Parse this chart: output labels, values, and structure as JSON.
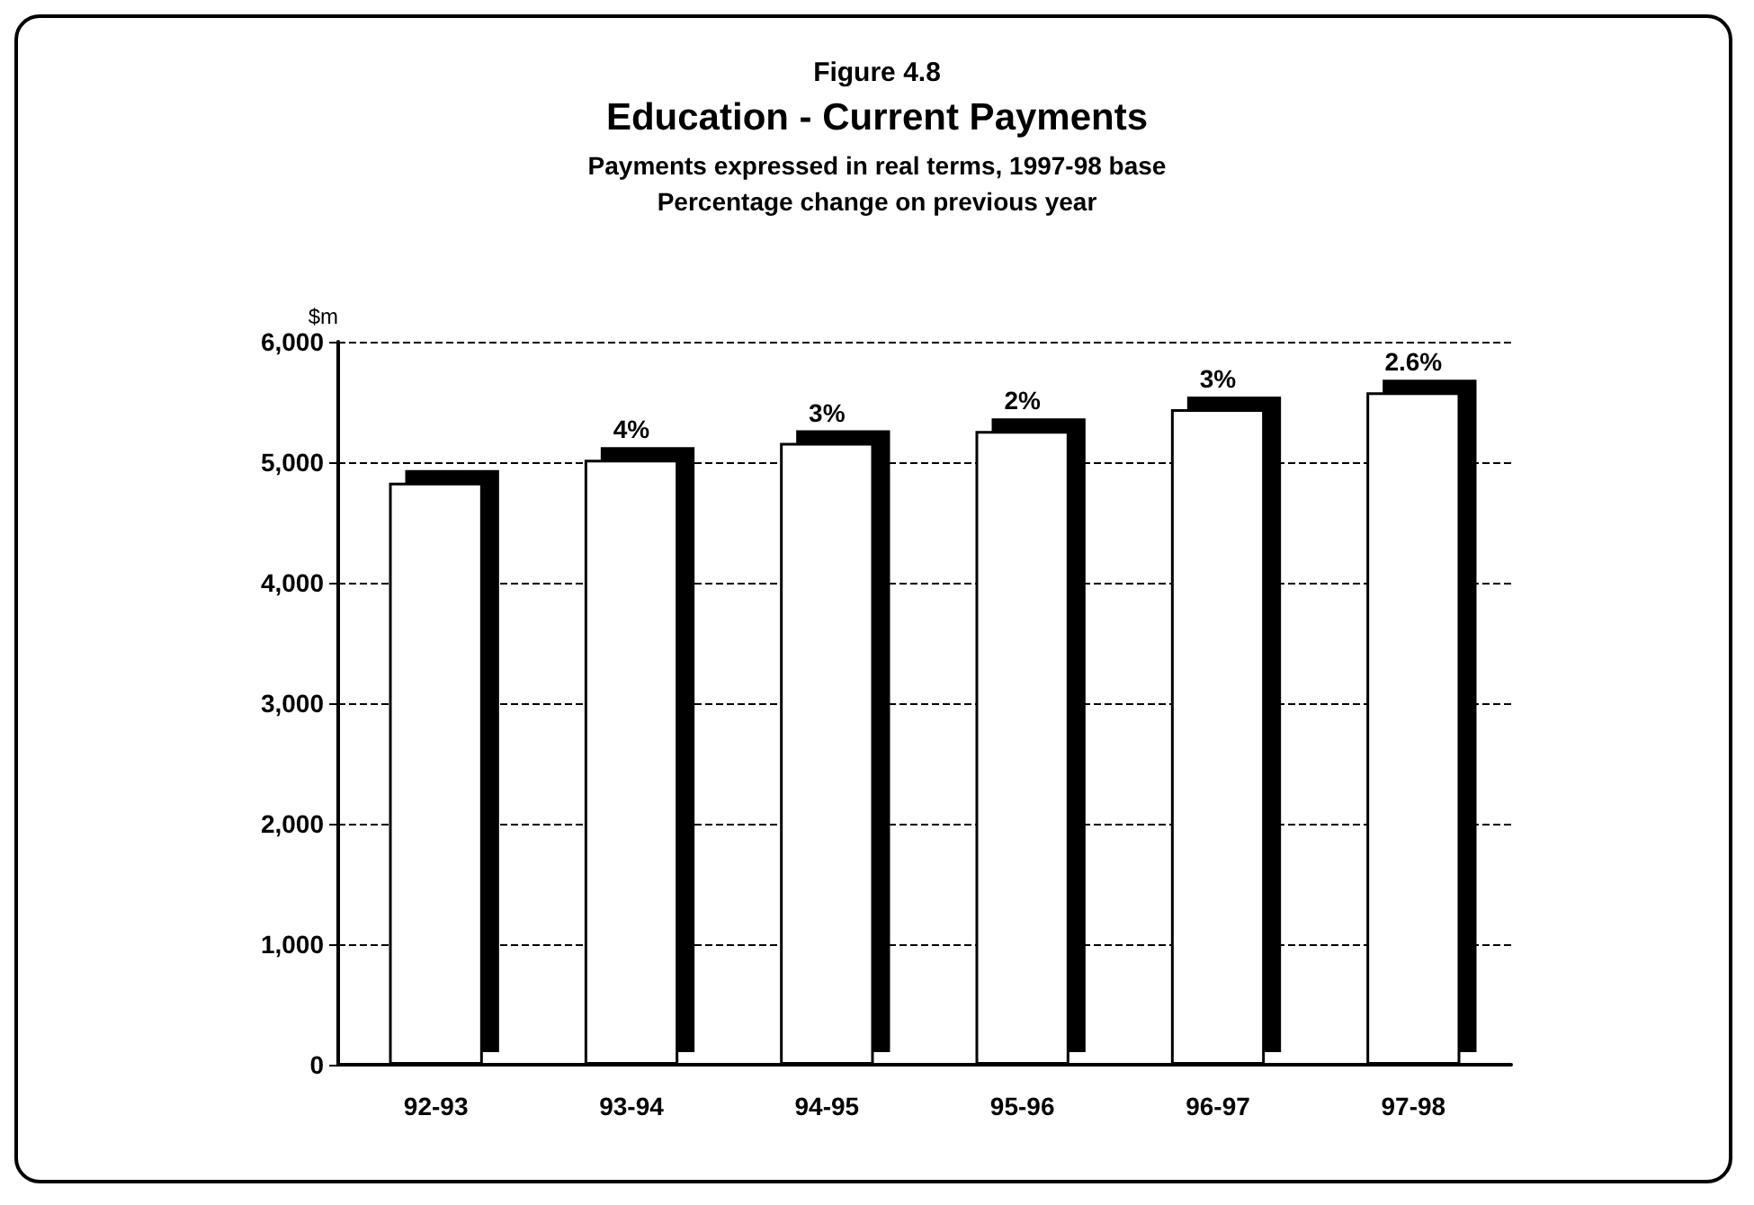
{
  "chart_data": {
    "type": "bar",
    "title": "Education - Current Payments",
    "subtitle": "Payments expressed in real terms, 1997-98 base\nPercentage change on previous year",
    "annotations": [
      "Figure 4.8",
      {
        "text": "4%",
        "x": "93-94",
        "y": 5020
      },
      {
        "text": "3%",
        "x": "94-95",
        "y": 5160
      },
      {
        "text": "2%",
        "x": "95-96",
        "y": 5260
      },
      {
        "text": "3%",
        "x": "96-97",
        "y": 5440
      },
      {
        "text": "2.6%",
        "x": "97-98",
        "y": 5580
      }
    ],
    "ylabel": "$m",
    "categories": [
      "92-93",
      "93-94",
      "94-95",
      "95-96",
      "96-97",
      "97-98"
    ],
    "values": [
      4830,
      5020,
      5160,
      5260,
      5440,
      5580
    ],
    "color": "#ffffff",
    "ylim": [
      0,
      6000
    ],
    "yticks": [
      0,
      {
        "value": 1000,
        "label": "1,000"
      },
      {
        "value": 2000,
        "label": "2,000"
      },
      {
        "value": 3000,
        "label": "3,000"
      },
      {
        "value": 4000,
        "label": "4,000"
      },
      {
        "value": 5000,
        "label": "5,000"
      },
      {
        "value": 6000,
        "label": "6,000"
      }
    ],
    "grid": "y"
  }
}
